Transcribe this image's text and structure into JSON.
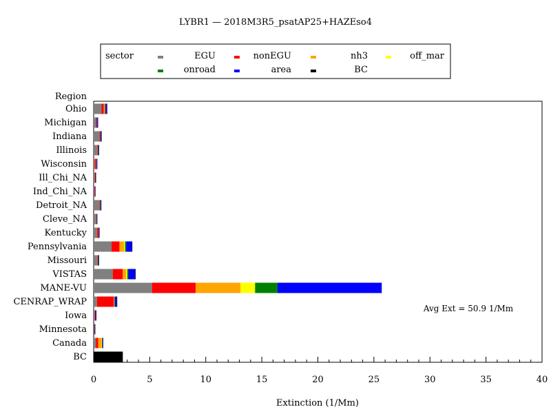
{
  "chart_data": {
    "type": "bar",
    "orientation": "horizontal",
    "stacked": true,
    "title": "LYBR1  —  2018M3R5_psatAP25+HAZEso4",
    "xlabel": "Extinction  (1/Mm)",
    "ylabel": "Region",
    "xlim": [
      0,
      40
    ],
    "x_major_ticks": [
      0,
      5,
      10,
      15,
      20,
      25,
      30,
      35,
      40
    ],
    "x_minor_step": 1,
    "legend_title": "sector",
    "legend_position": "top",
    "annotation": "Avg Ext =   50.9  1/Mm",
    "categories": [
      "Ohio",
      "Michigan",
      "Indiana",
      "Illinois",
      "Wisconsin",
      "Ill_Chi_NA",
      "Ind_Chi_NA",
      "Detroit_NA",
      "Cleve_NA",
      "Kentucky",
      "Pennsylvania",
      "Missouri",
      "VISTAS",
      "MANE-VU",
      "CENRAP_WRAP",
      "Iowa",
      "Minnesota",
      "Canada",
      "BC"
    ],
    "series": [
      {
        "name": "EGU",
        "color": "#808080",
        "values": [
          0.7,
          0.2,
          0.5,
          0.3,
          0.1,
          0.05,
          0.05,
          0.5,
          0.2,
          0.3,
          1.6,
          0.3,
          1.7,
          5.2,
          0.3,
          0.05,
          0.03,
          0.2,
          0
        ]
      },
      {
        "name": "nonEGU",
        "color": "#ff0000",
        "values": [
          0.2,
          0.05,
          0.05,
          0.05,
          0.1,
          0.05,
          0.03,
          0.05,
          0.03,
          0.1,
          0.7,
          0.05,
          0.9,
          3.9,
          1.5,
          0.05,
          0.03,
          0.2,
          0
        ]
      },
      {
        "name": "nh3",
        "color": "#ffa500",
        "values": [
          0.1,
          0.0,
          0.02,
          0.02,
          0.02,
          0.02,
          0.01,
          0.02,
          0.01,
          0.02,
          0.4,
          0.02,
          0.3,
          4.0,
          0.05,
          0.02,
          0.01,
          0.3,
          0
        ]
      },
      {
        "name": "off_mar",
        "color": "#ffff00",
        "values": [
          0.0,
          0.0,
          0.0,
          0.0,
          0.0,
          0.0,
          0.0,
          0.0,
          0.0,
          0.0,
          0.1,
          0.0,
          0.1,
          1.3,
          0.0,
          0.0,
          0.0,
          0.05,
          0
        ]
      },
      {
        "name": "onroad",
        "color": "#008000",
        "values": [
          0.05,
          0.03,
          0.03,
          0.03,
          0.02,
          0.02,
          0.01,
          0.03,
          0.02,
          0.02,
          0.1,
          0.03,
          0.1,
          2.0,
          0.05,
          0.02,
          0.01,
          0.02,
          0
        ]
      },
      {
        "name": "area",
        "color": "#0000ff",
        "values": [
          0.1,
          0.05,
          0.05,
          0.05,
          0.03,
          0.02,
          0.01,
          0.05,
          0.03,
          0.03,
          0.5,
          0.05,
          0.6,
          9.3,
          0.15,
          0.05,
          0.03,
          0.05,
          0
        ]
      },
      {
        "name": "BC",
        "color": "#000000",
        "values": [
          0.02,
          0.02,
          0.02,
          0.02,
          0.01,
          0.01,
          0.01,
          0.02,
          0.01,
          0.01,
          0.05,
          0.02,
          0.05,
          0.0,
          0.05,
          0.01,
          0.01,
          0.02,
          2.6
        ]
      },
      {
        "name": "",
        "color": "#7f007f",
        "values": [
          0.05,
          0.05,
          0.05,
          0.0,
          0.05,
          0.05,
          0.05,
          0.0,
          0.0,
          0.05,
          0.0,
          0.0,
          0.0,
          0.0,
          0.0,
          0.05,
          0.0,
          0.0,
          0
        ]
      }
    ]
  }
}
